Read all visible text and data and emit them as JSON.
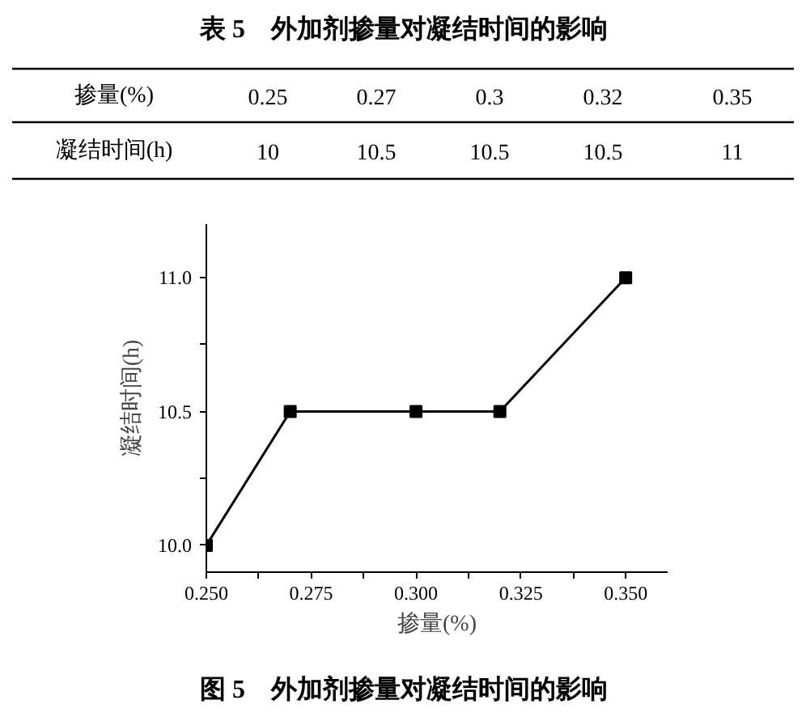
{
  "chart_data": [
    {
      "type": "other",
      "title": "表 5　外加剂掺量对凝结时间的影响",
      "annotations": [
        "掺量(%)",
        "0.25",
        "0.27",
        "0.3",
        "0.32",
        "0.35",
        "凝结时间(h)",
        "10",
        "10.5",
        "10.5",
        "10.5",
        "11"
      ]
    },
    {
      "type": "line",
      "xlabel": "掺量(%)",
      "ylabel": "凝结时间(h)",
      "x": [
        0.25,
        0.27,
        0.3,
        0.32,
        0.35
      ],
      "series": [
        {
          "color": "#000000",
          "values": [
            10,
            10.5,
            10.5,
            10.5,
            11
          ]
        }
      ],
      "marker": "square",
      "line_style": "solid",
      "xlim": [
        0.25,
        0.36
      ],
      "ylim": [
        9.9,
        11.2
      ],
      "xticks": [
        {
          "value": 0.25,
          "label": "0.250"
        },
        {
          "value": 0.2625,
          "label": null
        },
        {
          "value": 0.275,
          "label": "0.275"
        },
        {
          "value": 0.2875,
          "label": null
        },
        {
          "value": 0.3,
          "label": "0.300"
        },
        {
          "value": 0.3125,
          "label": null
        },
        {
          "value": 0.325,
          "label": "0.325"
        },
        {
          "value": 0.3375,
          "label": null
        },
        {
          "value": 0.35,
          "label": "0.350"
        }
      ],
      "yticks": [
        {
          "value": 10,
          "label": "10.0"
        },
        {
          "value": 10.25,
          "label": null
        },
        {
          "value": 10.5,
          "label": "10.5"
        },
        {
          "value": 10.75,
          "label": null
        },
        {
          "value": 11,
          "label": "11.0"
        }
      ],
      "annotations": [
        "图 5　外加剂掺量对凝结时间的影响"
      ]
    }
  ]
}
